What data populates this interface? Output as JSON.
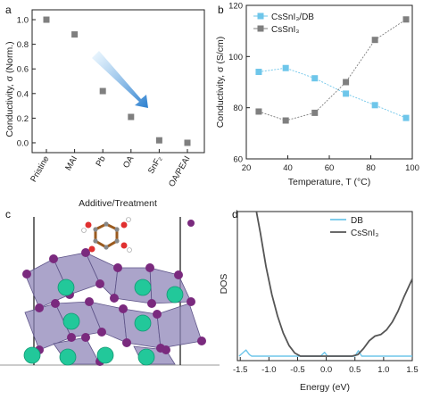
{
  "colors": {
    "gray": "#7f7f7f",
    "blue": "#6ec6ea",
    "dark": "#555555",
    "arrow": "#3a8fd6"
  },
  "panels": {
    "a": "a",
    "b": "b",
    "c": "c",
    "d": "d"
  },
  "chart_data": [
    {
      "panel": "a",
      "type": "scatter",
      "categories": [
        "Pristine",
        "MAI",
        "Pb",
        "OA",
        "SnF₂",
        "OA/PEAI"
      ],
      "values": [
        1.0,
        0.88,
        0.42,
        0.21,
        0.02,
        0.0
      ],
      "xlabel": "Additive/Treatment",
      "ylabel": "Conductivity, σ (Norm.)",
      "yticks": [
        "0.0",
        "0.2",
        "0.4",
        "0.6",
        "0.8",
        "1.0"
      ],
      "ylim": [
        -0.08,
        1.08
      ],
      "annotation": "downward arrow from MAI toward OA"
    },
    {
      "panel": "b",
      "type": "line",
      "x": [
        26,
        39,
        53,
        68,
        82,
        97
      ],
      "series": [
        {
          "name": "CsSnI₃/DB",
          "values": [
            94,
            95.5,
            91.5,
            85.5,
            81,
            76
          ]
        },
        {
          "name": "CsSnI₃",
          "values": [
            78.5,
            75,
            78,
            90,
            106.5,
            114.5
          ]
        }
      ],
      "xlabel": "Temperature, T (°C)",
      "ylabel": "Conductivity, σ (S/cm)",
      "xticks": [
        "20",
        "40",
        "60",
        "80",
        "100"
      ],
      "yticks": [
        "60",
        "80",
        "100",
        "120"
      ],
      "xlim": [
        20,
        100
      ],
      "ylim": [
        60,
        120
      ],
      "legend": "top-left"
    },
    {
      "panel": "d",
      "type": "line",
      "series": [
        {
          "name": "DB",
          "points": [
            [
              -1.52,
              0.0
            ],
            [
              -1.46,
              0.02
            ],
            [
              -1.4,
              0.04
            ],
            [
              -1.34,
              0.01
            ],
            [
              -1.3,
              0.0
            ],
            [
              -0.1,
              0.0
            ],
            [
              -0.03,
              0.025
            ],
            [
              0.02,
              0.0
            ],
            [
              0.5,
              0.0
            ],
            [
              0.56,
              0.035
            ],
            [
              0.62,
              0.0
            ],
            [
              1.5,
              0.0
            ]
          ]
        },
        {
          "name": "CsSnI₃",
          "points": [
            [
              -1.25,
              1.0
            ],
            [
              -1.15,
              0.8
            ],
            [
              -1.05,
              0.58
            ],
            [
              -0.95,
              0.4
            ],
            [
              -0.85,
              0.26
            ],
            [
              -0.75,
              0.15
            ],
            [
              -0.65,
              0.07
            ],
            [
              -0.55,
              0.02
            ],
            [
              -0.45,
              0.0
            ],
            [
              0.45,
              0.0
            ],
            [
              0.55,
              0.01
            ],
            [
              0.65,
              0.05
            ],
            [
              0.75,
              0.1
            ],
            [
              0.85,
              0.13
            ],
            [
              0.95,
              0.14
            ],
            [
              1.05,
              0.17
            ],
            [
              1.15,
              0.22
            ],
            [
              1.25,
              0.29
            ],
            [
              1.35,
              0.38
            ],
            [
              1.45,
              0.46
            ],
            [
              1.5,
              0.5
            ]
          ]
        }
      ],
      "xlabel": "Energy (eV)",
      "ylabel": "DOS",
      "xticks": [
        "-1.5",
        "-1.0",
        "-0.5",
        "0.0",
        "0.5",
        "1.0",
        "1.5"
      ],
      "xlim": [
        -1.55,
        1.5
      ],
      "ylim": [
        0,
        1
      ],
      "legend": "top-right"
    }
  ]
}
